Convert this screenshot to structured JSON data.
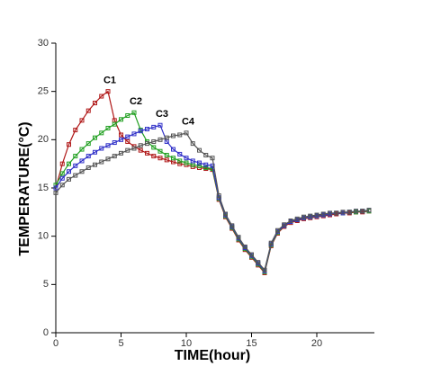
{
  "chart_data": {
    "type": "line",
    "xlabel": "TIME(hour)",
    "ylabel": "TEMPERATURE(°C)",
    "x": [
      0,
      0.5,
      1,
      1.5,
      2,
      2.5,
      3,
      3.5,
      4,
      4.5,
      5,
      5.5,
      6,
      6.5,
      7,
      7.5,
      8,
      8.5,
      9,
      9.5,
      10,
      10.5,
      11,
      11.5,
      12,
      12.5,
      13,
      13.5,
      14,
      14.5,
      15,
      15.5,
      16,
      16.5,
      17,
      17.5,
      18,
      18.5,
      19,
      19.5,
      20,
      20.5,
      21,
      21.5,
      22,
      22.5,
      23,
      23.5,
      24
    ],
    "series": [
      {
        "name": "C1",
        "color": "#b01818",
        "values": [
          15,
          17.5,
          19.5,
          21,
          22,
          23,
          23.8,
          24.5,
          25,
          22,
          20.5,
          19.8,
          19.3,
          18.9,
          18.6,
          18.3,
          18.1,
          17.9,
          17.7,
          17.5,
          17.4,
          17.2,
          17.1,
          17,
          16.9,
          13.8,
          12,
          10.8,
          9.6,
          8.6,
          7.8,
          7,
          6.2,
          9,
          10.3,
          11,
          11.4,
          11.6,
          11.8,
          11.9,
          12,
          12.1,
          12.2,
          12.3,
          12.4,
          12.4,
          12.5,
          12.5,
          12.6
        ]
      },
      {
        "name": "C2",
        "color": "#22a022",
        "values": [
          15.3,
          16.5,
          17.5,
          18.3,
          19,
          19.6,
          20.2,
          20.7,
          21.2,
          21.6,
          22.1,
          22.5,
          22.8,
          21,
          19.8,
          19.2,
          18.8,
          18.4,
          18.1,
          17.8,
          17.6,
          17.4,
          17.3,
          17.1,
          17,
          13.9,
          12.1,
          10.9,
          9.7,
          8.7,
          7.9,
          7.1,
          6.3,
          9.1,
          10.4,
          11.1,
          11.5,
          11.7,
          11.9,
          12,
          12.1,
          12.2,
          12.3,
          12.4,
          12.4,
          12.5,
          12.5,
          12.6,
          12.6
        ]
      },
      {
        "name": "C3",
        "color": "#3030c8",
        "values": [
          15,
          16,
          16.7,
          17.3,
          17.8,
          18.3,
          18.7,
          19.1,
          19.4,
          19.7,
          20,
          20.3,
          20.6,
          20.9,
          21.1,
          21.3,
          21.5,
          19.8,
          19,
          18.5,
          18.1,
          17.8,
          17.6,
          17.4,
          17.3,
          14,
          12.2,
          11,
          9.8,
          8.8,
          8,
          7.2,
          6.4,
          9.2,
          10.5,
          11.1,
          11.5,
          11.7,
          11.9,
          12,
          12.1,
          12.2,
          12.3,
          12.4,
          12.4,
          12.5,
          12.6,
          12.6,
          12.7
        ]
      },
      {
        "name": "C4",
        "color": "#555555",
        "values": [
          14.5,
          15.3,
          15.9,
          16.3,
          16.7,
          17.1,
          17.4,
          17.7,
          18,
          18.3,
          18.6,
          18.9,
          19.1,
          19.4,
          19.6,
          19.8,
          20,
          20.2,
          20.4,
          20.5,
          20.7,
          19.6,
          18.9,
          18.4,
          18.1,
          14.2,
          12.3,
          11.1,
          9.9,
          8.9,
          8.1,
          7.3,
          6.5,
          9.3,
          10.6,
          11.2,
          11.6,
          11.8,
          12,
          12.1,
          12.2,
          12.3,
          12.4,
          12.4,
          12.5,
          12.5,
          12.6,
          12.6,
          12.7
        ]
      }
    ],
    "xlim": [
      0,
      24
    ],
    "xticks": [
      0,
      5,
      10,
      15,
      20
    ],
    "ylim": [
      0,
      30
    ],
    "yticks": [
      0,
      5,
      10,
      15,
      20,
      25,
      30
    ],
    "grid": false
  }
}
